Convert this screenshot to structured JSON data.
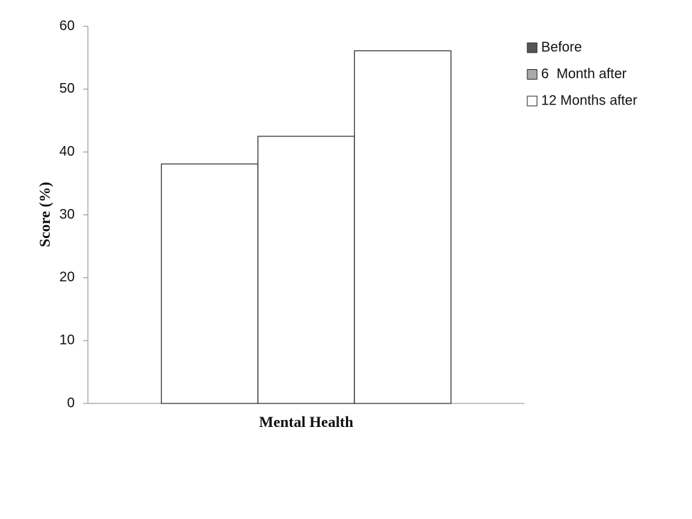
{
  "chart_data": {
    "type": "bar",
    "y_label": "Score (%)",
    "categories": [
      "Mental Health"
    ],
    "series": [
      {
        "name": "Before",
        "color": "#555555",
        "values": [
          38.1
        ]
      },
      {
        "name": "6  Month after",
        "color": "#aaaaaa",
        "values": [
          42.5
        ]
      },
      {
        "name": "12 Months after",
        "color": "#ffffff",
        "values": [
          56.1
        ]
      }
    ],
    "bar_fill": "#ffffff",
    "ylim": [
      0,
      60
    ],
    "yticks": [
      0,
      10,
      20,
      30,
      40,
      50,
      60
    ],
    "legend": "right"
  }
}
